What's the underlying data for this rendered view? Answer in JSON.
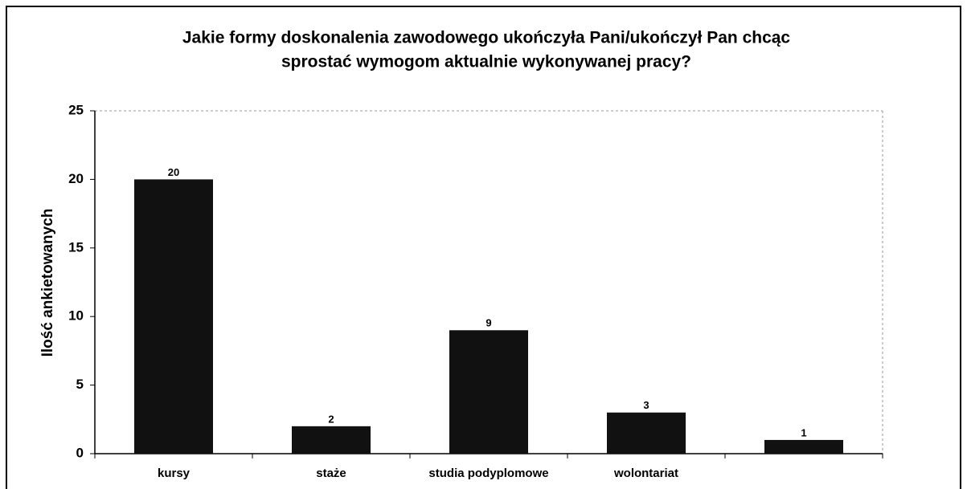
{
  "chart_data": {
    "type": "bar",
    "title": [
      "Jakie formy doskonalenia zawodowego ukończyła Pani/ukończył Pan chcąc",
      "sprostać wymogom aktualnie wykonywanej pracy?"
    ],
    "y_label": "Ilość ankietowanych",
    "categories": [
      "kursy",
      "staże",
      "studia podyplomowe",
      "wolontariat",
      null
    ],
    "values": [
      20,
      2,
      9,
      3,
      1
    ],
    "color": "#111111",
    "ylim": [
      0,
      25
    ],
    "yticks": [
      0,
      5,
      10,
      15,
      20,
      25
    ],
    "grid": false
  }
}
